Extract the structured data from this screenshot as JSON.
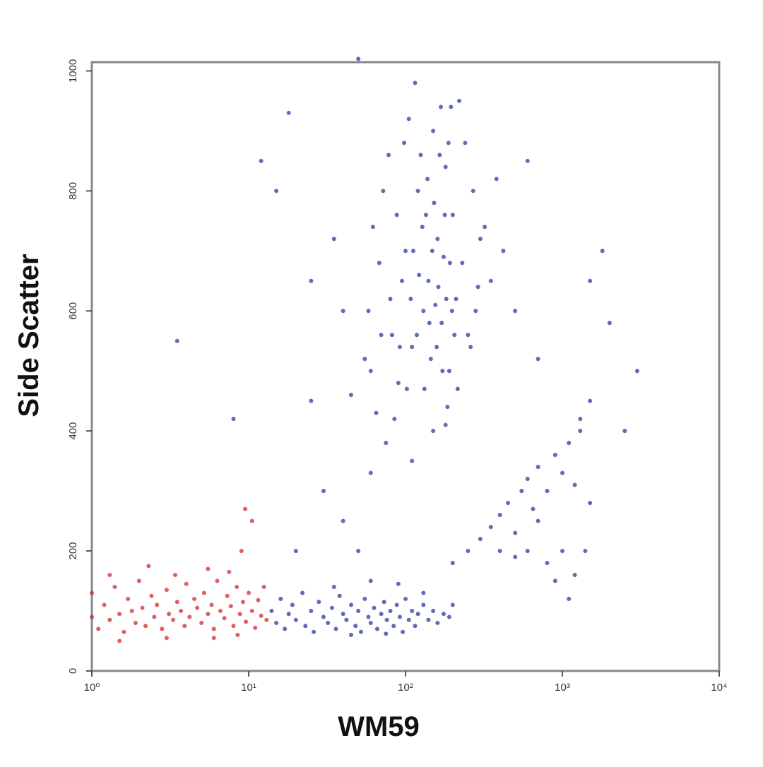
{
  "chart_data": {
    "type": "scatter",
    "x_label": "WM59",
    "y_label": "Side Scatter",
    "xscale": "log",
    "xlim": [
      1,
      10000
    ],
    "xticks": [
      {
        "value": 1,
        "label": "10⁰"
      },
      {
        "value": 10,
        "label": "10¹"
      },
      {
        "value": 100,
        "label": "10²"
      },
      {
        "value": 1000,
        "label": "10³"
      },
      {
        "value": 10000,
        "label": "10⁴"
      }
    ],
    "ylim": [
      0,
      1024
    ],
    "yticks": [
      0,
      200,
      400,
      600,
      800,
      1000
    ],
    "series": [
      {
        "color": "#d42a2a",
        "x": [
          1.0,
          1.0,
          1.1,
          1.2,
          1.3,
          1.4,
          1.5,
          1.6,
          1.7,
          1.8,
          1.9,
          2.0,
          2.1,
          2.2,
          2.4,
          2.5,
          2.6,
          2.8,
          3.0,
          3.1,
          3.3,
          3.5,
          3.7,
          3.9,
          4.0,
          4.2,
          4.5,
          4.7,
          5.0,
          5.2,
          5.5,
          5.8,
          6.0,
          6.3,
          6.6,
          7.0,
          7.3,
          7.7,
          8.0,
          8.4,
          8.8,
          9.2,
          9.6,
          10,
          10.5,
          11,
          11.5,
          12,
          12.5,
          13,
          1.3,
          2.3,
          3.4,
          5.5,
          7.5,
          9,
          9.5,
          10.5,
          3,
          6,
          1.5,
          8.5
        ],
        "y": [
          90,
          130,
          70,
          110,
          85,
          140,
          95,
          65,
          120,
          100,
          80,
          150,
          105,
          75,
          125,
          90,
          110,
          70,
          135,
          95,
          85,
          115,
          100,
          75,
          145,
          90,
          120,
          105,
          80,
          130,
          95,
          110,
          70,
          150,
          100,
          88,
          125,
          108,
          75,
          140,
          95,
          115,
          82,
          130,
          100,
          72,
          118,
          92,
          140,
          85,
          160,
          175,
          160,
          170,
          165,
          200,
          270,
          250,
          55,
          55,
          50,
          60
        ]
      },
      {
        "color": "#2b3a9e",
        "x": [
          14,
          15,
          16,
          17,
          18,
          19,
          20,
          22,
          23,
          25,
          26,
          28,
          30,
          32,
          34,
          36,
          38,
          40,
          42,
          45,
          48,
          50,
          52,
          55,
          58,
          60,
          63,
          66,
          70,
          73,
          76,
          80,
          84,
          88,
          92,
          96,
          100,
          105,
          110,
          115,
          120,
          130,
          140,
          150,
          160,
          175,
          190,
          200,
          35,
          60,
          90,
          45,
          75,
          130,
          60,
          70,
          80,
          90,
          100,
          110,
          120,
          130,
          140,
          150,
          160,
          170,
          180,
          190,
          200,
          210,
          220,
          230,
          250,
          270,
          290,
          300,
          65,
          75,
          85,
          95,
          105,
          115,
          125,
          135,
          145,
          155,
          165,
          175,
          185,
          195,
          205,
          215,
          240,
          260,
          280,
          320,
          350,
          380,
          420,
          500,
          55,
          58,
          62,
          68,
          72,
          78,
          82,
          88,
          92,
          98,
          102,
          108,
          112,
          118,
          122,
          128,
          132,
          138,
          142,
          148,
          152,
          158,
          162,
          168,
          172,
          178,
          182,
          188,
          192,
          198,
          45,
          40,
          35,
          600,
          700,
          150,
          110,
          180,
          200,
          250,
          300,
          350,
          400,
          450,
          500,
          550,
          600,
          650,
          700,
          800,
          900,
          1000,
          1100,
          1200,
          1300,
          1500,
          1000,
          900,
          800,
          1200,
          1400,
          700,
          600,
          500,
          1100,
          1300,
          1500,
          400,
          20,
          30,
          25,
          40,
          50,
          60,
          15,
          12,
          25,
          18,
          3.5,
          2500,
          3000,
          2000,
          1800,
          8,
          50,
          1500
        ],
        "y": [
          100,
          80,
          120,
          70,
          95,
          110,
          85,
          130,
          75,
          100,
          65,
          115,
          90,
          80,
          105,
          70,
          125,
          95,
          85,
          110,
          75,
          100,
          65,
          120,
          90,
          80,
          105,
          70,
          95,
          115,
          85,
          100,
          75,
          110,
          90,
          65,
          120,
          85,
          100,
          75,
          95,
          110,
          85,
          100,
          80,
          95,
          90,
          110,
          140,
          150,
          145,
          60,
          62,
          130,
          500,
          560,
          620,
          480,
          700,
          540,
          800,
          600,
          650,
          900,
          720,
          580,
          840,
          500,
          760,
          620,
          950,
          680,
          560,
          800,
          640,
          720,
          430,
          380,
          420,
          650,
          920,
          980,
          860,
          760,
          520,
          610,
          860,
          690,
          440,
          940,
          560,
          470,
          880,
          540,
          600,
          740,
          650,
          820,
          700,
          600,
          520,
          600,
          740,
          680,
          800,
          860,
          560,
          760,
          540,
          880,
          470,
          620,
          700,
          560,
          660,
          740,
          470,
          820,
          580,
          700,
          780,
          540,
          640,
          940,
          500,
          760,
          620,
          880,
          680,
          600,
          460,
          600,
          720,
          850,
          520,
          400,
          350,
          410,
          180,
          200,
          220,
          240,
          260,
          280,
          230,
          300,
          320,
          270,
          340,
          300,
          360,
          330,
          380,
          310,
          400,
          280,
          200,
          150,
          180,
          160,
          200,
          250,
          200,
          190,
          120,
          420,
          450,
          200,
          200,
          300,
          450,
          250,
          200,
          330,
          800,
          850,
          650,
          930,
          550,
          400,
          500,
          580,
          700,
          420,
          1020,
          650
        ]
      }
    ]
  }
}
